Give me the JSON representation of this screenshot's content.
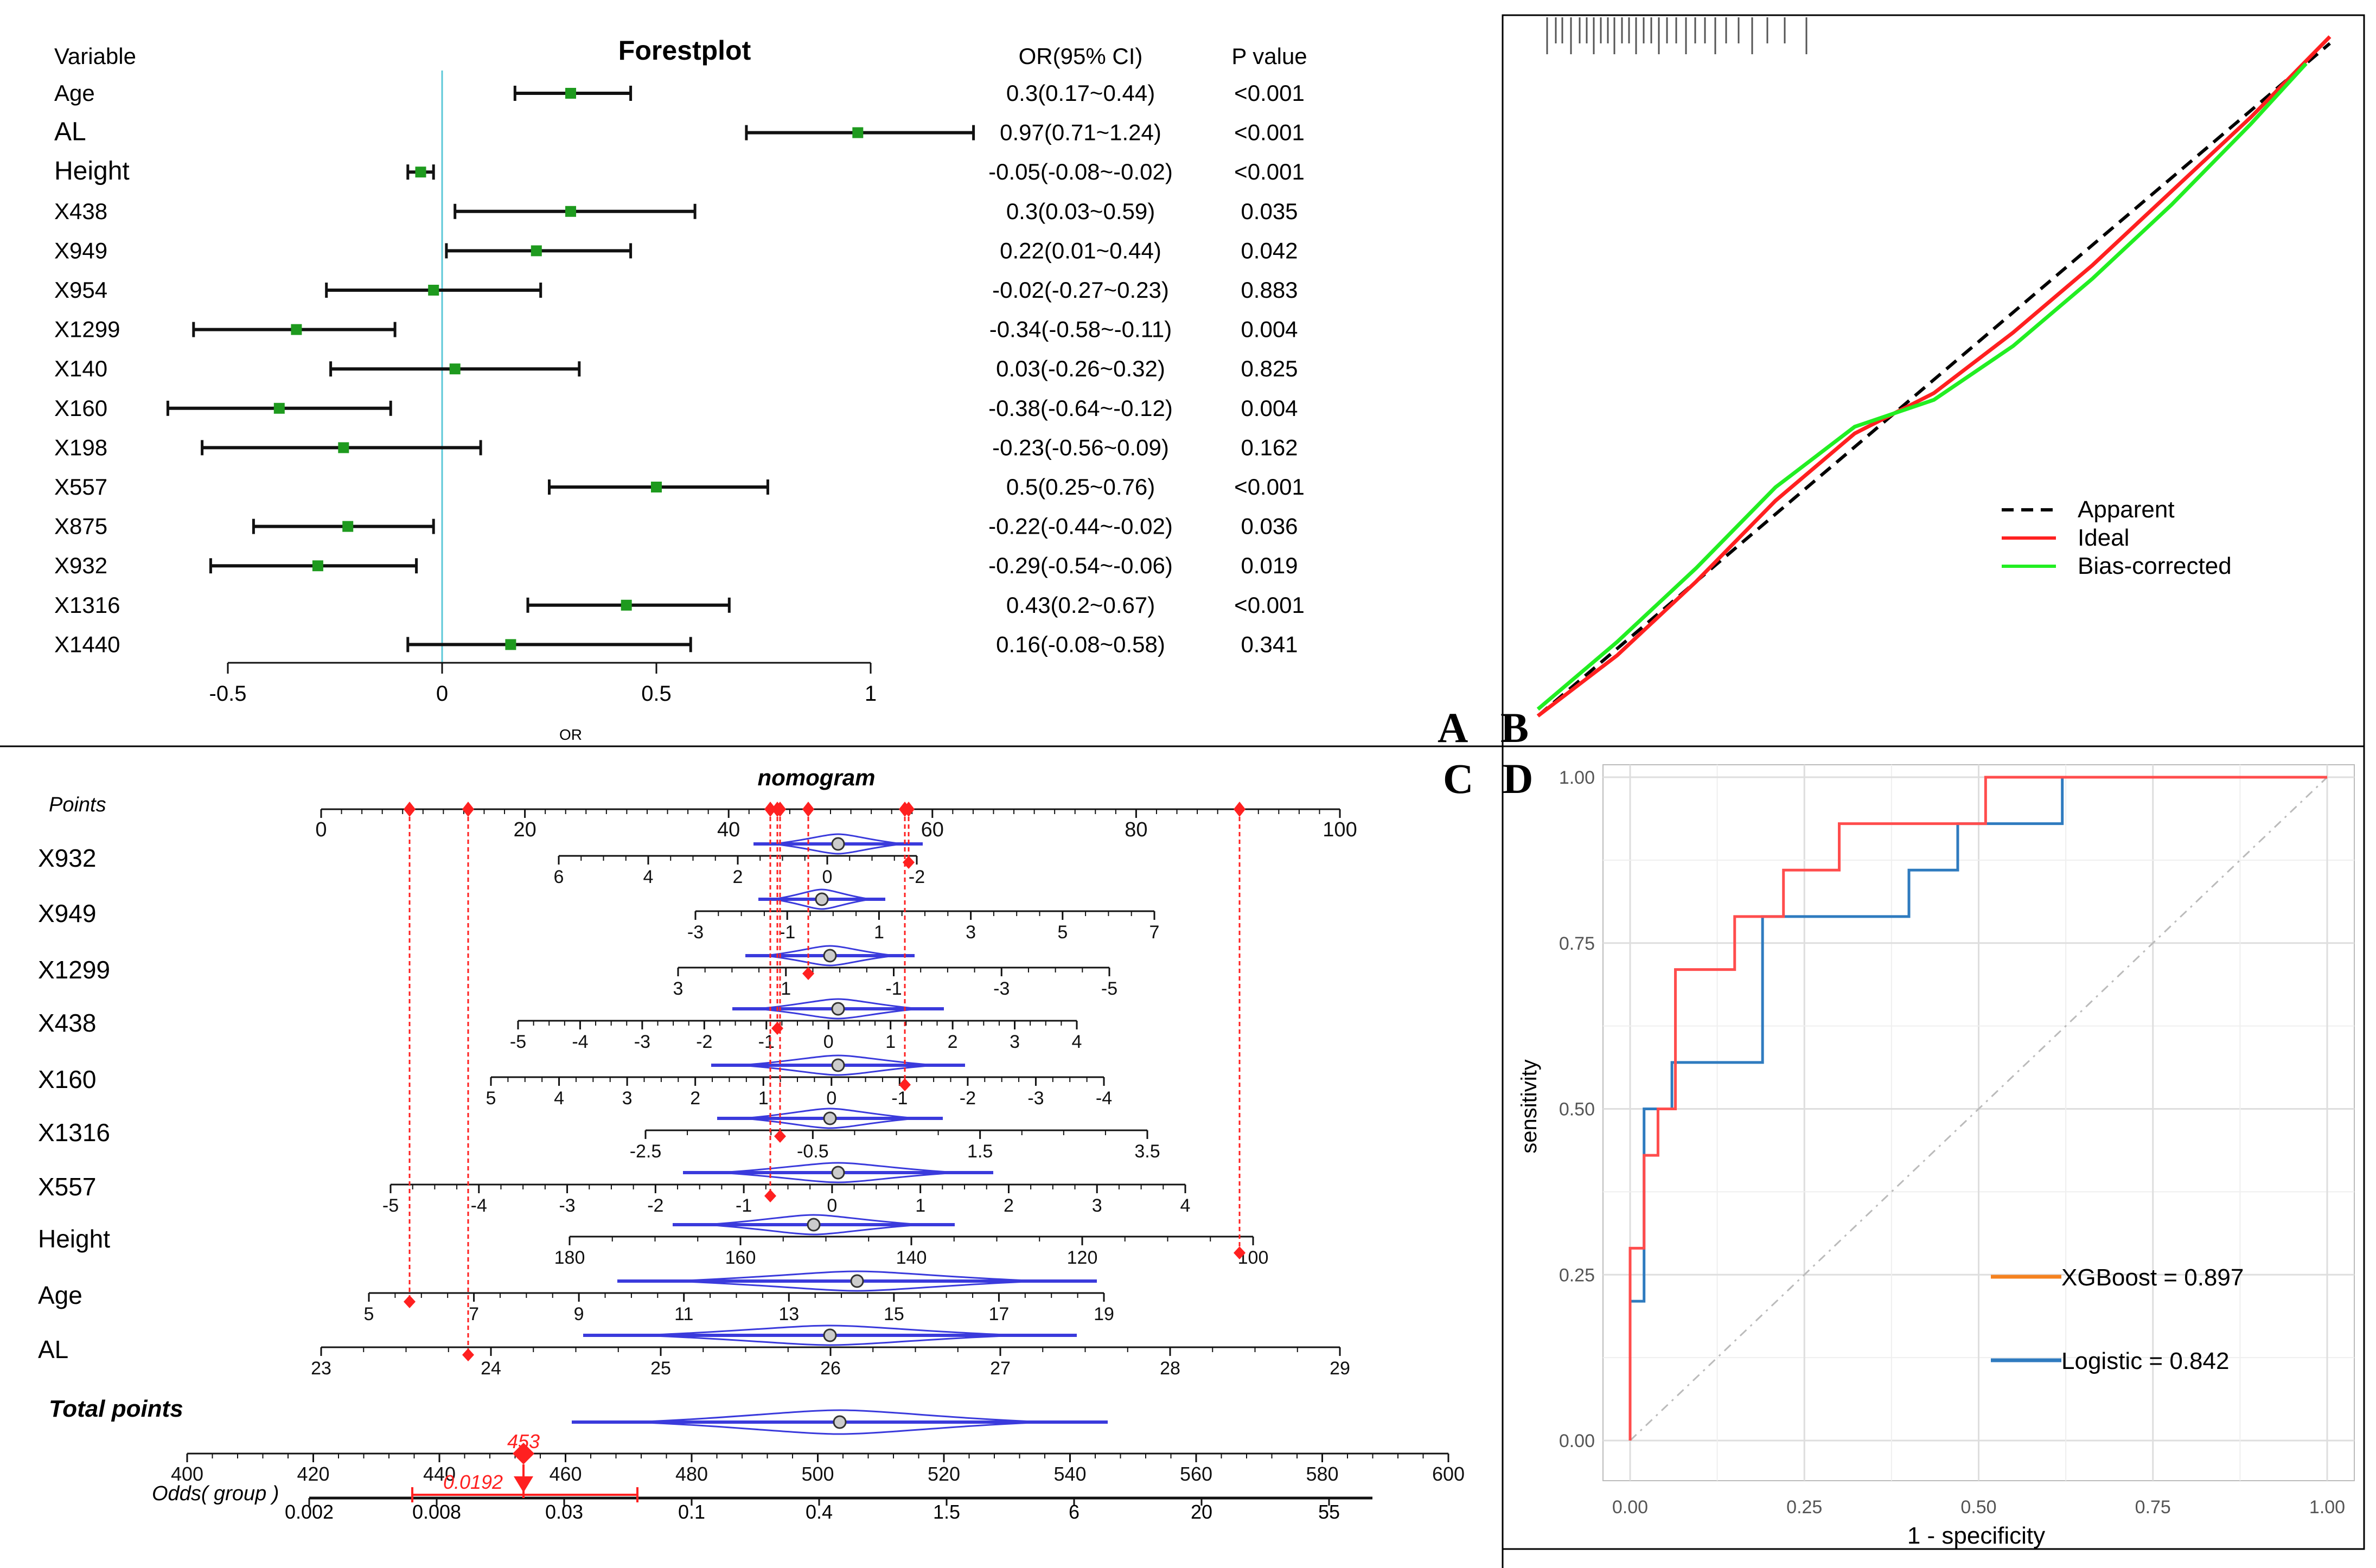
{
  "panel_labels": {
    "a": "A",
    "b": "B",
    "c": "C",
    "d": "D"
  },
  "chart_data": [
    {
      "type": "forestplot",
      "title": "Forestplot",
      "headers": {
        "variable": "Variable",
        "or_ci": "OR(95% CI)",
        "p": "P value"
      },
      "xlabel": "OR",
      "xlim": [
        -0.5,
        1
      ],
      "xticks": [
        "-0.5",
        "0",
        "0.5",
        "1"
      ],
      "reference_line": 0,
      "rows": [
        {
          "variable": "Age",
          "or": 0.3,
          "lo": 0.17,
          "hi": 0.44,
          "or_text": "0.3(0.17~0.44)",
          "p": "<0.001"
        },
        {
          "variable": "AL",
          "or": 0.97,
          "lo": 0.71,
          "hi": 1.24,
          "or_text": "0.97(0.71~1.24)",
          "p": "<0.001"
        },
        {
          "variable": "Height",
          "or": -0.05,
          "lo": -0.08,
          "hi": -0.02,
          "or_text": "-0.05(-0.08~-0.02)",
          "p": "<0.001"
        },
        {
          "variable": "X438",
          "or": 0.3,
          "lo": 0.03,
          "hi": 0.59,
          "or_text": "0.3(0.03~0.59)",
          "p": "0.035"
        },
        {
          "variable": "X949",
          "or": 0.22,
          "lo": 0.01,
          "hi": 0.44,
          "or_text": "0.22(0.01~0.44)",
          "p": "0.042"
        },
        {
          "variable": "X954",
          "or": -0.02,
          "lo": -0.27,
          "hi": 0.23,
          "or_text": "-0.02(-0.27~0.23)",
          "p": "0.883"
        },
        {
          "variable": "X1299",
          "or": -0.34,
          "lo": -0.58,
          "hi": -0.11,
          "or_text": "-0.34(-0.58~-0.11)",
          "p": "0.004"
        },
        {
          "variable": "X140",
          "or": 0.03,
          "lo": -0.26,
          "hi": 0.32,
          "or_text": "0.03(-0.26~0.32)",
          "p": "0.825"
        },
        {
          "variable": "X160",
          "or": -0.38,
          "lo": -0.64,
          "hi": -0.12,
          "or_text": "-0.38(-0.64~-0.12)",
          "p": "0.004"
        },
        {
          "variable": "X198",
          "or": -0.23,
          "lo": -0.56,
          "hi": 0.09,
          "or_text": "-0.23(-0.56~0.09)",
          "p": "0.162"
        },
        {
          "variable": "X557",
          "or": 0.5,
          "lo": 0.25,
          "hi": 0.76,
          "or_text": "0.5(0.25~0.76)",
          "p": "<0.001"
        },
        {
          "variable": "X875",
          "or": -0.22,
          "lo": -0.44,
          "hi": -0.02,
          "or_text": "-0.22(-0.44~-0.02)",
          "p": "0.036"
        },
        {
          "variable": "X932",
          "or": -0.29,
          "lo": -0.54,
          "hi": -0.06,
          "or_text": "-0.29(-0.54~-0.06)",
          "p": "0.019"
        },
        {
          "variable": "X1316",
          "or": 0.43,
          "lo": 0.2,
          "hi": 0.67,
          "or_text": "0.43(0.2~0.67)",
          "p": "<0.001"
        },
        {
          "variable": "X1440",
          "or": 0.16,
          "lo": -0.08,
          "hi": 0.58,
          "or_text": "0.16(-0.08~0.58)",
          "p": "0.341"
        }
      ]
    },
    {
      "type": "line",
      "title": "",
      "xlim": [
        0,
        1
      ],
      "ylim": [
        0,
        1
      ],
      "legend": [
        "Apparent",
        "Ideal",
        "Bias-corrected"
      ],
      "series": [
        {
          "name": "Apparent",
          "style": "dashed",
          "color": "#000000",
          "x": [
            0,
            1
          ],
          "y": [
            0,
            1
          ]
        },
        {
          "name": "Ideal",
          "color": "#ff2020",
          "x": [
            0,
            0.1,
            0.2,
            0.3,
            0.4,
            0.45,
            0.5,
            0.6,
            0.7,
            0.8,
            0.9,
            1.0
          ],
          "y": [
            0,
            0.09,
            0.2,
            0.32,
            0.42,
            0.45,
            0.48,
            0.57,
            0.67,
            0.78,
            0.89,
            1.01
          ]
        },
        {
          "name": "Bias-corrected",
          "color": "#22ee22",
          "x": [
            0,
            0.1,
            0.2,
            0.3,
            0.4,
            0.45,
            0.5,
            0.6,
            0.7,
            0.8,
            0.9,
            0.97
          ],
          "y": [
            0.01,
            0.11,
            0.22,
            0.34,
            0.43,
            0.45,
            0.47,
            0.55,
            0.65,
            0.76,
            0.88,
            0.97
          ]
        }
      ]
    },
    {
      "type": "nomogram",
      "title": "nomogram",
      "point_ticks": [
        "0",
        "20",
        "40",
        "60",
        "80",
        "100"
      ],
      "point_label": "Points",
      "variables": [
        {
          "name": "X932",
          "ticks": [
            "6",
            "4",
            "2",
            "0",
            "-2"
          ]
        },
        {
          "name": "X949",
          "ticks": [
            "-3",
            "-1",
            "1",
            "3",
            "5",
            "7"
          ]
        },
        {
          "name": "X1299",
          "ticks": [
            "3",
            "1",
            "-1",
            "-3",
            "-5"
          ]
        },
        {
          "name": "X438",
          "ticks": [
            "-5",
            "-4",
            "-3",
            "-2",
            "-1",
            "0",
            "1",
            "2",
            "3",
            "4"
          ]
        },
        {
          "name": "X160",
          "ticks": [
            "5",
            "4",
            "3",
            "2",
            "1",
            "0",
            "-1",
            "-2",
            "-3",
            "-4"
          ]
        },
        {
          "name": "X1316",
          "ticks": [
            "-2.5",
            "-0.5",
            "1.5",
            "3.5"
          ]
        },
        {
          "name": "X557",
          "ticks": [
            "-5",
            "-4",
            "-3",
            "-2",
            "-1",
            "0",
            "1",
            "2",
            "3",
            "4"
          ]
        },
        {
          "name": "Height",
          "ticks": [
            "180",
            "160",
            "140",
            "120",
            "100"
          ]
        },
        {
          "name": "Age",
          "ticks": [
            "5",
            "7",
            "9",
            "11",
            "13",
            "15",
            "17",
            "19"
          ]
        },
        {
          "name": "AL",
          "ticks": [
            "23",
            "24",
            "25",
            "26",
            "27",
            "28",
            "29"
          ]
        }
      ],
      "total_label": "Total points",
      "total_ticks": [
        "400",
        "420",
        "440",
        "460",
        "480",
        "500",
        "520",
        "540",
        "560",
        "580",
        "600"
      ],
      "total_value": "453",
      "odds_label": "Odds( group )",
      "odds_ticks": [
        "0.002",
        "0.008",
        "0.03",
        "0.1",
        "0.4",
        "1.5",
        "6",
        "20",
        "55"
      ],
      "odds_value": "0.0192"
    },
    {
      "type": "line",
      "title": "",
      "xlabel": "1 - specificity",
      "ylabel": "sensitivity",
      "xlim": [
        0,
        1
      ],
      "ylim": [
        0,
        1
      ],
      "xticks": [
        "0.00",
        "0.25",
        "0.50",
        "0.75",
        "1.00"
      ],
      "yticks": [
        "0.00",
        "0.25",
        "0.50",
        "0.75",
        "1.00"
      ],
      "series": [
        {
          "name": "XGBoost",
          "auc": "0.897",
          "legend_text": "XGBoost = 0.897",
          "color": "#ff4d4d",
          "x": [
            0,
            0,
            0.02,
            0.02,
            0.04,
            0.04,
            0.065,
            0.065,
            0.15,
            0.15,
            0.22,
            0.22,
            0.3,
            0.3,
            0.51,
            0.51,
            1
          ],
          "y": [
            0,
            0.29,
            0.29,
            0.43,
            0.43,
            0.5,
            0.5,
            0.71,
            0.71,
            0.79,
            0.79,
            0.86,
            0.86,
            0.93,
            0.93,
            1,
            1
          ]
        },
        {
          "name": "Logistic",
          "auc": "0.842",
          "legend_text": "Logistic = 0.842",
          "color": "#2f7bbf",
          "x": [
            0,
            0,
            0.02,
            0.02,
            0.06,
            0.06,
            0.19,
            0.19,
            0.4,
            0.4,
            0.47,
            0.47,
            0.62,
            0.62,
            1
          ],
          "y": [
            0,
            0.21,
            0.21,
            0.5,
            0.5,
            0.57,
            0.57,
            0.79,
            0.79,
            0.86,
            0.86,
            0.93,
            0.93,
            1,
            1
          ]
        }
      ]
    }
  ]
}
